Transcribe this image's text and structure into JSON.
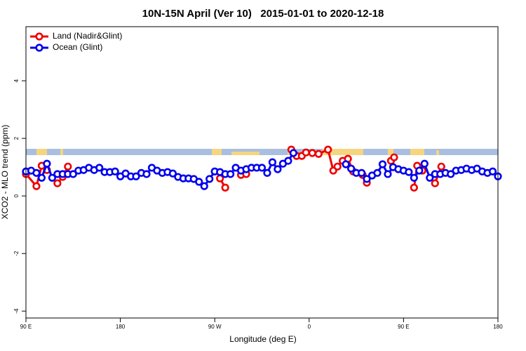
{
  "chart_data": {
    "type": "line",
    "title": "10N-15N April (Ver 10)   2015-01-01 to 2020-12-18",
    "xlabel": "Longitude (deg E)",
    "ylabel": "XCO2 - MLO trend (ppm)",
    "xlim": [
      90,
      540
    ],
    "ylim": [
      -4.24,
      5.88
    ],
    "xticks": [
      {
        "value": 90,
        "label": "90 E"
      },
      {
        "value": 180,
        "label": "180"
      },
      {
        "value": 270,
        "label": "90 W"
      },
      {
        "value": 360,
        "label": "0"
      },
      {
        "value": 450,
        "label": "90 E"
      },
      {
        "value": 540,
        "label": "180"
      }
    ],
    "yticks": [
      -4,
      -2,
      0,
      2,
      4
    ],
    "legend": "top-left",
    "series": [
      {
        "name": "Land (Nadir&Glint)",
        "color": "#ee0000",
        "x": [
          90,
          100,
          105,
          110,
          115,
          120,
          125,
          130,
          135,
          275,
          280,
          285,
          295,
          300,
          305,
          343,
          348,
          353,
          357,
          363,
          369,
          378,
          383,
          387,
          392,
          397,
          402,
          411,
          415,
          420,
          438,
          441,
          445,
          460,
          463,
          468,
          472,
          480,
          486
        ],
        "values": [
          0.76,
          0.34,
          1.05,
          0.9,
          null,
          0.44,
          0.66,
          1.02,
          null,
          0.61,
          0.29,
          null,
          0.73,
          0.76,
          null,
          1.61,
          1.39,
          1.39,
          1.51,
          1.49,
          1.46,
          1.61,
          0.88,
          1.02,
          1.22,
          1.29,
          0.85,
          0.73,
          0.46,
          null,
          1.22,
          1.34,
          null,
          0.29,
          1.05,
          0.88,
          null,
          0.44,
          1.02
        ]
      },
      {
        "name": "Ocean (Glint)",
        "color": "#0000ee",
        "x": [
          90,
          95,
          100,
          105,
          110,
          115,
          120,
          125,
          130,
          135,
          140,
          145,
          150,
          155,
          160,
          165,
          170,
          175,
          180,
          185,
          190,
          195,
          200,
          205,
          210,
          215,
          220,
          225,
          230,
          235,
          240,
          245,
          250,
          255,
          260,
          265,
          270,
          275,
          280,
          285,
          290,
          295,
          300,
          305,
          310,
          315,
          320,
          325,
          330,
          335,
          340,
          345,
          350,
          395,
          400,
          405,
          410,
          415,
          420,
          425,
          430,
          435,
          440,
          445,
          450,
          455,
          460,
          465,
          470,
          475,
          480,
          485,
          490,
          495,
          500,
          505,
          510,
          515,
          520,
          525,
          530,
          535,
          540
        ],
        "values": [
          0.85,
          0.88,
          0.8,
          0.63,
          1.12,
          0.63,
          0.76,
          0.76,
          0.76,
          0.76,
          0.88,
          0.9,
          0.98,
          0.9,
          0.98,
          0.83,
          0.83,
          0.85,
          0.68,
          0.78,
          0.68,
          0.68,
          0.8,
          0.76,
          0.98,
          0.88,
          0.8,
          0.83,
          0.78,
          0.66,
          0.61,
          0.61,
          0.59,
          0.49,
          0.34,
          0.59,
          0.85,
          0.83,
          0.76,
          0.76,
          0.98,
          0.88,
          0.93,
          0.98,
          0.98,
          0.98,
          0.8,
          1.17,
          0.93,
          1.12,
          1.22,
          1.49,
          null,
          1.1,
          0.95,
          0.8,
          0.8,
          0.59,
          0.71,
          0.8,
          1.1,
          0.76,
          1.0,
          0.93,
          0.88,
          0.83,
          0.63,
          0.88,
          1.12,
          0.63,
          0.76,
          0.76,
          0.8,
          0.76,
          0.88,
          0.9,
          0.95,
          0.9,
          0.95,
          0.85,
          0.8,
          0.85,
          0.68
        ]
      }
    ]
  }
}
